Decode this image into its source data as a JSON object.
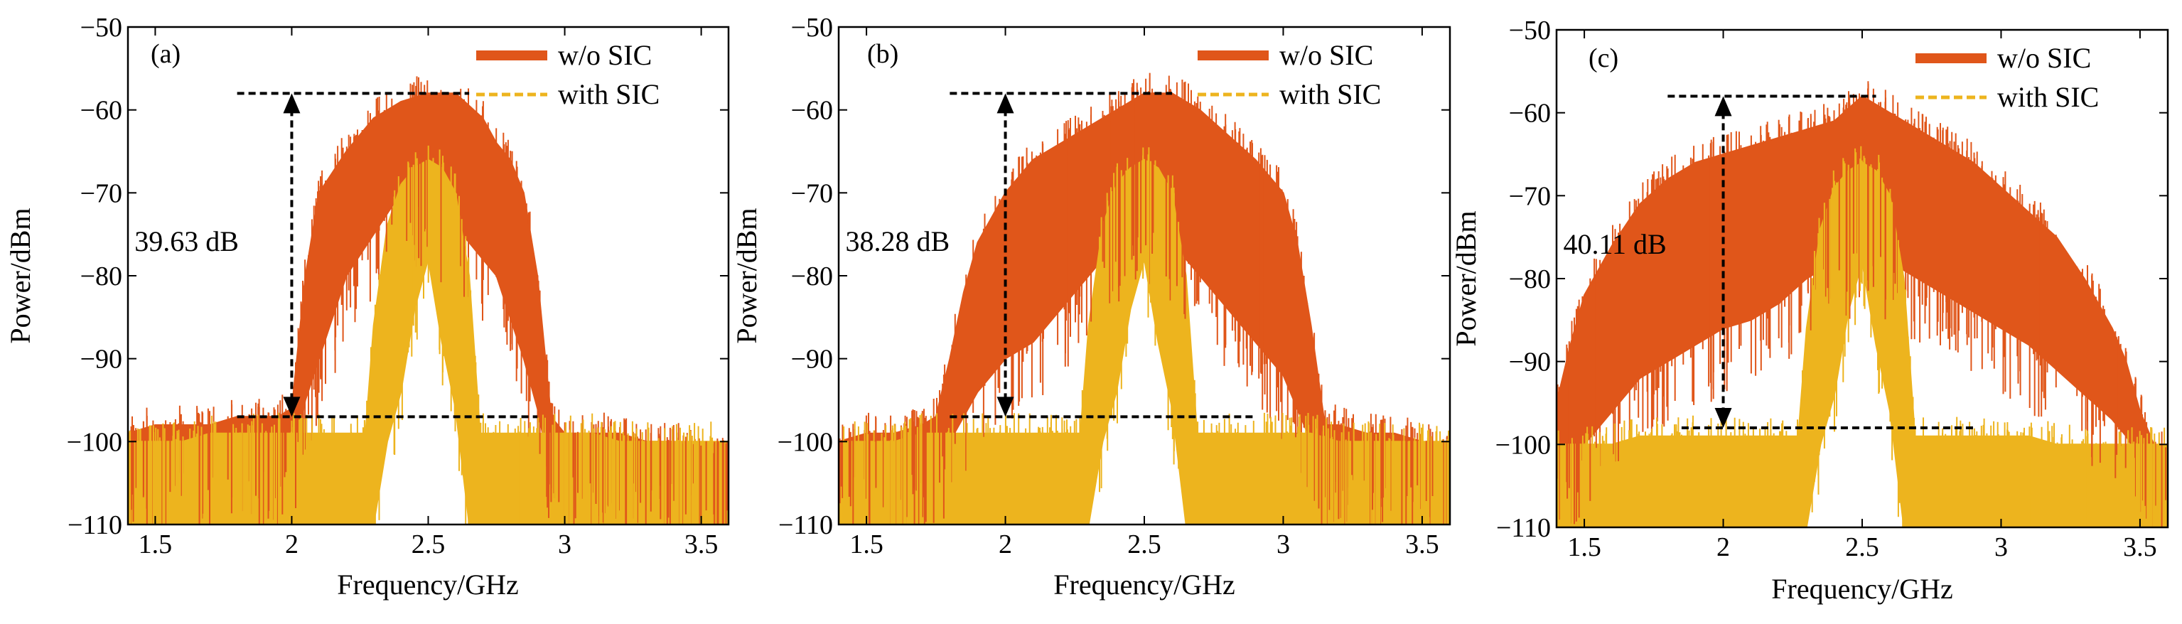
{
  "figure": {
    "colors": {
      "without_sic": "#E0561A",
      "with_sic": "#EDB41E",
      "axis": "#000000",
      "marker": "#000000"
    }
  },
  "chart_data": [
    {
      "type": "area",
      "panel_label": "(a)",
      "xlabel": "Frequency/GHz",
      "ylabel": "Power/dBm",
      "xlim": [
        1.4,
        3.6
      ],
      "ylim": [
        -110,
        -50
      ],
      "xticks": [
        1.5,
        2,
        2.5,
        3,
        3.5
      ],
      "xtick_labels": [
        "1.5",
        "2",
        "2.5",
        "3",
        "3.5"
      ],
      "yticks": [
        -50,
        -60,
        -70,
        -80,
        -90,
        -100,
        -110
      ],
      "ytick_labels": [
        "−50",
        "−60",
        "−70",
        "−80",
        "−90",
        "−100",
        "−110"
      ],
      "legend": {
        "position": "top-right",
        "entries": [
          "w/o SIC",
          "with SIC"
        ]
      },
      "series": [
        {
          "name": "w/o SIC",
          "style": "solid",
          "x": [
            1.4,
            1.5,
            1.6,
            1.7,
            1.8,
            1.9,
            1.95,
            2.0,
            2.05,
            2.1,
            2.2,
            2.3,
            2.4,
            2.5,
            2.6,
            2.7,
            2.75,
            2.8,
            2.85,
            2.9,
            2.95,
            3.0,
            3.1,
            3.2,
            3.3,
            3.4,
            3.5,
            3.6
          ],
          "upper": [
            -99,
            -98,
            -98,
            -98,
            -97,
            -97,
            -97,
            -96,
            -80,
            -70,
            -65,
            -61,
            -59,
            -58,
            -58,
            -61,
            -64,
            -66,
            -70,
            -80,
            -97,
            -99,
            -99,
            -99,
            -100,
            -100,
            -101,
            -102
          ],
          "lower": [
            -104,
            -104,
            -103,
            -103,
            -103,
            -103,
            -103,
            -103,
            -95,
            -90,
            -80,
            -75,
            -70,
            -72,
            -74,
            -78,
            -80,
            -85,
            -90,
            -96,
            -104,
            -104,
            -104,
            -104,
            -105,
            -105,
            -105,
            -106
          ]
        },
        {
          "name": "with SIC",
          "style": "dashed",
          "x": [
            1.4,
            1.5,
            1.6,
            1.7,
            1.8,
            1.9,
            2.0,
            2.1,
            2.2,
            2.25,
            2.27,
            2.3,
            2.35,
            2.4,
            2.45,
            2.5,
            2.55,
            2.6,
            2.65,
            2.69,
            2.71,
            2.75,
            2.8,
            2.9,
            3.0,
            3.1,
            3.2,
            3.3,
            3.4,
            3.5,
            3.6
          ],
          "upper": [
            -100,
            -100,
            -100,
            -99,
            -99,
            -99,
            -99,
            -99,
            -99,
            -99,
            -99,
            -86,
            -74,
            -69,
            -67,
            -66,
            -67,
            -70,
            -80,
            -99,
            -99,
            -99,
            -99,
            -99,
            -99,
            -99,
            -100,
            -100,
            -100,
            -100,
            -100
          ],
          "lower": [
            -110,
            -110,
            -110,
            -110,
            -110,
            -110,
            -110,
            -110,
            -110,
            -110,
            -110,
            -110,
            -100,
            -94,
            -84,
            -78,
            -88,
            -96,
            -110,
            -110,
            -110,
            -110,
            -110,
            -110,
            -110,
            -110,
            -110,
            -110,
            -110,
            -110,
            -110
          ],
          "gap": [
            2.27,
            2.71
          ]
        }
      ],
      "annotations": {
        "text": "39.63 dB",
        "top_level": -58,
        "bottom_level": -97,
        "top_line_x": [
          1.8,
          2.65
        ],
        "bottom_line_x": [
          1.8,
          2.9
        ],
        "arrow_x": 2.0,
        "text_x": 1.45,
        "text_y": -77
      }
    },
    {
      "type": "area",
      "panel_label": "(b)",
      "xlabel": "Frequency/GHz",
      "ylabel": "Power/dBm",
      "xlim": [
        1.4,
        3.6
      ],
      "ylim": [
        -110,
        -50
      ],
      "xticks": [
        1.5,
        2,
        2.5,
        3,
        3.5
      ],
      "xtick_labels": [
        "1.5",
        "2",
        "2.5",
        "3",
        "3.5"
      ],
      "yticks": [
        -50,
        -60,
        -70,
        -80,
        -90,
        -100,
        -110
      ],
      "ytick_labels": [
        "−50",
        "−60",
        "−70",
        "−80",
        "−90",
        "−100",
        "−110"
      ],
      "legend": {
        "position": "top-right",
        "entries": [
          "w/o SIC",
          "with SIC"
        ]
      },
      "series": [
        {
          "name": "w/o SIC",
          "style": "solid",
          "x": [
            1.4,
            1.5,
            1.6,
            1.7,
            1.75,
            1.8,
            1.85,
            1.9,
            2.0,
            2.1,
            2.2,
            2.3,
            2.4,
            2.5,
            2.6,
            2.7,
            2.8,
            2.9,
            3.0,
            3.05,
            3.1,
            3.15,
            3.2,
            3.3,
            3.4,
            3.5,
            3.6
          ],
          "upper": [
            -100,
            -99,
            -99,
            -98,
            -97,
            -90,
            -82,
            -76,
            -70,
            -66,
            -64,
            -62,
            -60,
            -58,
            -58,
            -60,
            -63,
            -66,
            -70,
            -76,
            -86,
            -98,
            -98,
            -99,
            -99,
            -100,
            -101
          ],
          "lower": [
            -104,
            -104,
            -104,
            -103,
            -103,
            -100,
            -97,
            -94,
            -90,
            -88,
            -84,
            -80,
            -76,
            -74,
            -76,
            -80,
            -84,
            -88,
            -92,
            -96,
            -100,
            -104,
            -104,
            -104,
            -105,
            -105,
            -106
          ]
        },
        {
          "name": "with SIC",
          "style": "dashed",
          "x": [
            1.4,
            1.5,
            1.6,
            1.7,
            1.8,
            1.9,
            2.0,
            2.1,
            2.2,
            2.25,
            2.27,
            2.3,
            2.35,
            2.4,
            2.45,
            2.5,
            2.55,
            2.6,
            2.65,
            2.69,
            2.71,
            2.75,
            2.8,
            2.9,
            3.0,
            3.1,
            3.2,
            3.3,
            3.4,
            3.5,
            3.6
          ],
          "upper": [
            -100,
            -100,
            -100,
            -99,
            -99,
            -99,
            -99,
            -99,
            -99,
            -99,
            -99,
            -86,
            -74,
            -69,
            -67,
            -66,
            -67,
            -70,
            -80,
            -99,
            -99,
            -99,
            -99,
            -99,
            -99,
            -99,
            -100,
            -100,
            -100,
            -100,
            -100
          ],
          "lower": [
            -110,
            -110,
            -110,
            -110,
            -110,
            -110,
            -110,
            -110,
            -110,
            -110,
            -110,
            -110,
            -100,
            -94,
            -84,
            -78,
            -88,
            -96,
            -110,
            -110,
            -110,
            -110,
            -110,
            -110,
            -110,
            -110,
            -110,
            -110,
            -110,
            -110,
            -110
          ],
          "gap": [
            2.27,
            2.71
          ]
        }
      ],
      "annotations": {
        "text": "38.28 dB",
        "top_level": -58,
        "bottom_level": -97,
        "top_line_x": [
          1.8,
          2.6
        ],
        "bottom_line_x": [
          1.8,
          2.9
        ],
        "arrow_x": 2.0,
        "text_x": 1.45,
        "text_y": -77
      }
    },
    {
      "type": "area",
      "panel_label": "(c)",
      "xlabel": "Frequency/GHz",
      "ylabel": "Power/dBm",
      "xlim": [
        1.4,
        3.6
      ],
      "ylim": [
        -110,
        -50
      ],
      "xticks": [
        1.5,
        2,
        2.5,
        3,
        3.5
      ],
      "xtick_labels": [
        "1.5",
        "2",
        "2.5",
        "3",
        "3.5"
      ],
      "yticks": [
        -50,
        -60,
        -70,
        -80,
        -90,
        -100,
        -110
      ],
      "ytick_labels": [
        "−50",
        "−60",
        "−70",
        "−80",
        "−90",
        "−100",
        "−110"
      ],
      "legend": {
        "position": "top-right",
        "entries": [
          "w/o SIC",
          "with SIC"
        ]
      },
      "series": [
        {
          "name": "w/o SIC",
          "style": "solid",
          "x": [
            1.4,
            1.45,
            1.5,
            1.6,
            1.7,
            1.8,
            1.9,
            2.0,
            2.1,
            2.2,
            2.3,
            2.4,
            2.5,
            2.6,
            2.7,
            2.8,
            2.9,
            3.0,
            3.1,
            3.2,
            3.3,
            3.4,
            3.45,
            3.5,
            3.55,
            3.6
          ],
          "upper": [
            -95,
            -88,
            -82,
            -76,
            -71,
            -68,
            -66,
            -65,
            -64,
            -63,
            -62,
            -61,
            -58,
            -60,
            -62,
            -64,
            -66,
            -69,
            -72,
            -75,
            -80,
            -86,
            -90,
            -96,
            -100,
            -101
          ],
          "lower": [
            -104,
            -103,
            -100,
            -96,
            -92,
            -90,
            -88,
            -86,
            -85,
            -83,
            -80,
            -78,
            -76,
            -78,
            -80,
            -82,
            -84,
            -86,
            -88,
            -91,
            -94,
            -97,
            -99,
            -102,
            -104,
            -105
          ]
        },
        {
          "name": "with SIC",
          "style": "dashed",
          "x": [
            1.4,
            1.5,
            1.6,
            1.7,
            1.8,
            1.9,
            2.0,
            2.1,
            2.2,
            2.25,
            2.27,
            2.3,
            2.35,
            2.4,
            2.45,
            2.5,
            2.55,
            2.6,
            2.65,
            2.69,
            2.71,
            2.75,
            2.8,
            2.9,
            3.0,
            3.1,
            3.2,
            3.3,
            3.4,
            3.5,
            3.6
          ],
          "upper": [
            -100,
            -100,
            -100,
            -99,
            -99,
            -99,
            -99,
            -99,
            -99,
            -99,
            -99,
            -86,
            -74,
            -69,
            -67,
            -66,
            -67,
            -70,
            -80,
            -99,
            -99,
            -99,
            -99,
            -99,
            -99,
            -99,
            -100,
            -100,
            -100,
            -100,
            -100
          ],
          "lower": [
            -110,
            -110,
            -110,
            -110,
            -110,
            -110,
            -110,
            -110,
            -110,
            -110,
            -110,
            -110,
            -100,
            -94,
            -84,
            -78,
            -88,
            -96,
            -110,
            -110,
            -110,
            -110,
            -110,
            -110,
            -110,
            -110,
            -110,
            -110,
            -110,
            -110,
            -110
          ],
          "gap": [
            2.27,
            2.71
          ]
        }
      ],
      "annotations": {
        "text": "40.11 dB",
        "top_level": -58,
        "bottom_level": -98,
        "top_line_x": [
          1.8,
          2.55
        ],
        "bottom_line_x": [
          1.85,
          2.9
        ],
        "arrow_x": 2.0,
        "text_x": 1.45,
        "text_y": -77
      }
    }
  ]
}
